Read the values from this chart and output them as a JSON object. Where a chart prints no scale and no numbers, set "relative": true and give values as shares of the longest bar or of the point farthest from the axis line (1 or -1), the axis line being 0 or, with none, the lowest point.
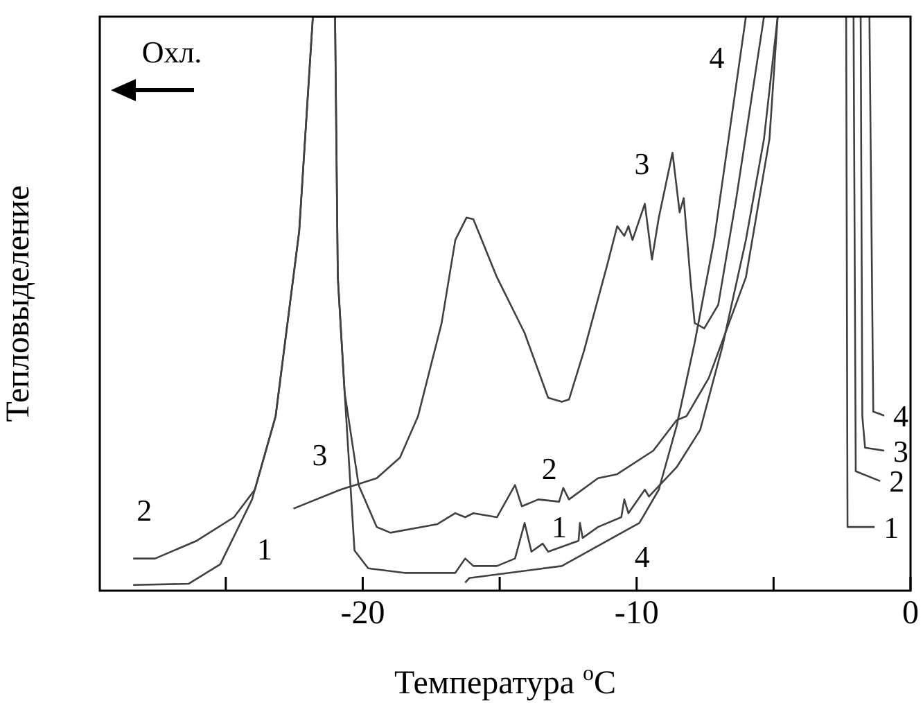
{
  "chart_data": {
    "type": "line",
    "xlabel": "Температура $^{o}$C",
    "ylabel": "Тепловыделение",
    "relative": true,
    "marker": "none",
    "line_style": "solid",
    "xlim": [
      -29.6,
      0
    ],
    "xticks": [
      {
        "value": -25,
        "label": null
      },
      -20,
      {
        "value": -15,
        "label": null
      },
      -10,
      {
        "value": -5,
        "label": null
      },
      0
    ],
    "annotations": [
      "Охл."
    ],
    "series": [
      {
        "name": "1",
        "color": "#404040",
        "x": [
          -28.38,
          -26.36,
          -25.2,
          -24.04,
          -23.18,
          -22.32,
          -21.82,
          -21.01,
          -20.91,
          -20.66,
          -20.3,
          -19.8,
          -18.48,
          -16.62,
          -16.26,
          -15.96,
          -15.1,
          -14.44,
          -14.09,
          -13.84,
          -13.43,
          -13.23,
          -12.12,
          -12.07,
          -11.97,
          -11.41,
          -10.56,
          -10.45,
          -10.3,
          -9.7,
          -9.55,
          -8.54,
          -7.68,
          -6.87,
          -6.01,
          -5.35,
          -4.85,
          -3.5,
          -2.35,
          -2.3,
          -1.31
        ],
        "values": [
          0.01,
          0.012,
          0.046,
          0.159,
          0.304,
          0.626,
          1,
          1,
          0.546,
          0.345,
          0.07,
          0.039,
          0.031,
          0.031,
          0.056,
          0.043,
          0.043,
          0.056,
          0.118,
          0.068,
          0.082,
          0.068,
          0.087,
          0.118,
          0.092,
          0.111,
          0.128,
          0.159,
          0.135,
          0.176,
          0.164,
          0.215,
          0.28,
          0.425,
          0.611,
          0.787,
          1,
          null,
          1,
          0.111,
          0.111
        ]
      },
      {
        "name": "2",
        "color": "#404040",
        "x": [
          -28.38,
          -27.58,
          -26.06,
          -24.7,
          -23.94,
          -23.18,
          -22.32,
          -21.82,
          -21.01,
          -20.91,
          -20.66,
          -20.15,
          -19.49,
          -18.99,
          -17.27,
          -16.62,
          -16.26,
          -15.96,
          -15.1,
          -14.44,
          -14.19,
          -13.59,
          -12.83,
          -12.68,
          -12.47,
          -11.41,
          -10.71,
          -9.39,
          -8.54,
          -8.18,
          -7.37,
          -6.01,
          -5.15,
          -4.85,
          -3.5,
          -2.08,
          -2.0,
          -1.11
        ],
        "values": [
          0.056,
          0.056,
          0.087,
          0.128,
          0.176,
          0.304,
          0.626,
          1,
          1,
          0.546,
          0.345,
          0.184,
          0.111,
          0.101,
          0.116,
          0.135,
          0.128,
          0.135,
          0.128,
          0.184,
          0.147,
          0.159,
          0.155,
          0.179,
          0.159,
          0.196,
          0.203,
          0.244,
          0.297,
          0.304,
          0.37,
          0.546,
          0.787,
          1,
          null,
          1,
          0.208,
          0.191
        ]
      },
      {
        "name": "3",
        "color": "#404040",
        "x": [
          -22.53,
          -20.81,
          -19.49,
          -18.64,
          -17.98,
          -17.12,
          -16.62,
          -16.21,
          -15.96,
          -15.1,
          -14.09,
          -13.23,
          -12.73,
          -12.47,
          -11.92,
          -11.06,
          -10.71,
          -10.45,
          -10.3,
          -10.15,
          -9.7,
          -9.44,
          -9.19,
          -8.69,
          -8.43,
          -8.28,
          -8.03,
          -7.88,
          -7.53,
          -7.02,
          -6.36,
          -5.35,
          -3.5,
          -1.82,
          -1.76,
          -1.66,
          -0.96
        ],
        "values": [
          0.143,
          0.176,
          0.196,
          0.232,
          0.304,
          0.466,
          0.611,
          0.65,
          0.647,
          0.546,
          0.449,
          0.336,
          0.329,
          0.333,
          0.418,
          0.57,
          0.635,
          0.618,
          0.635,
          0.611,
          0.674,
          0.577,
          0.65,
          0.763,
          0.659,
          0.684,
          0.539,
          0.466,
          0.457,
          0.498,
          0.684,
          1,
          null,
          1,
          0.304,
          0.249,
          0.244
        ]
      },
      {
        "name": "4",
        "color": "#404040",
        "x": [
          -16.26,
          -16.11,
          -12.73,
          -9.9,
          -9.19,
          -8.54,
          -7.88,
          -7.17,
          -6.01,
          -3.5,
          -1.5,
          -1.36,
          -0.96
        ],
        "values": [
          0.014,
          0.022,
          0.043,
          0.118,
          0.176,
          0.287,
          0.432,
          0.611,
          1,
          null,
          1,
          0.312,
          0.305
        ]
      }
    ]
  }
}
